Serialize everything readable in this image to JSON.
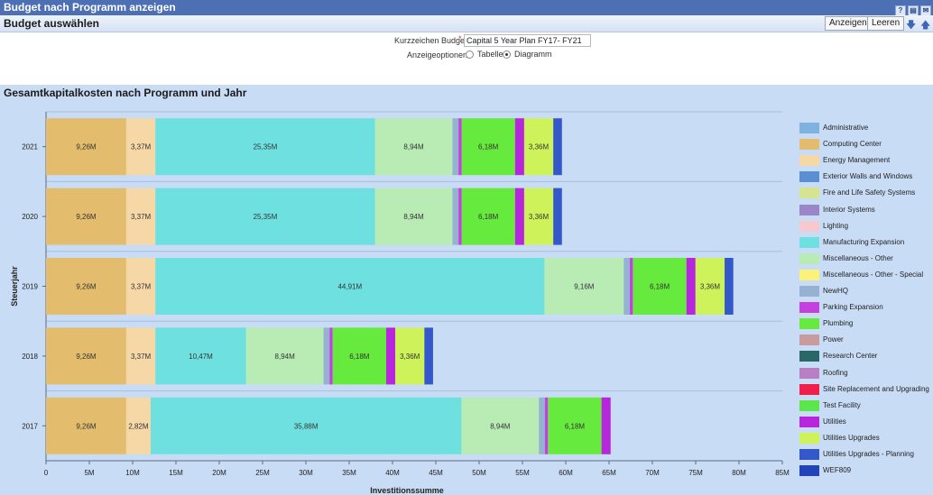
{
  "window": {
    "title": "Budget nach Programm anzeigen"
  },
  "panel": {
    "title": "Budget auswählen",
    "show_button": "Anzeigen",
    "clear_button": "Leeren"
  },
  "form": {
    "short_budget_label": "Kurzzeichen Budget",
    "short_budget_value": "Capital 5 Year Plan FY17- FY21",
    "display_options_label": "Anzeigeoptionen",
    "option_table": "Tabelle",
    "option_chart": "Diagramm",
    "selected_option": "Diagramm"
  },
  "chart_data": {
    "type": "bar",
    "orientation": "horizontal",
    "stacked": true,
    "title": "Gesamtkapitalkosten nach Programm und Jahr",
    "xlabel": "Investitionssumme",
    "ylabel": "Steuerjahr",
    "xlim": [
      0,
      85
    ],
    "x_unit": "M",
    "xticks": [
      "0",
      "5M",
      "10M",
      "15M",
      "20M",
      "25M",
      "30M",
      "35M",
      "40M",
      "45M",
      "50M",
      "55M",
      "60M",
      "65M",
      "70M",
      "75M",
      "80M",
      "85M"
    ],
    "categories": [
      "2021",
      "2020",
      "2019",
      "2018",
      "2017"
    ],
    "legend_position": "right",
    "series": [
      {
        "name": "Administrative",
        "color": "#7fb2e0",
        "values": [
          0,
          0,
          0,
          0,
          0
        ],
        "labels": [
          "",
          "",
          "",
          "",
          ""
        ]
      },
      {
        "name": "Computing Center",
        "color": "#e3bd6d",
        "values": [
          9.26,
          9.26,
          9.26,
          9.26,
          9.26
        ],
        "labels": [
          "9,26M",
          "9,26M",
          "9,26M",
          "9,26M",
          "9,26M"
        ]
      },
      {
        "name": "Energy Management",
        "color": "#f6d7a6",
        "values": [
          3.37,
          3.37,
          3.37,
          3.37,
          2.82
        ],
        "labels": [
          "3,37M",
          "3,37M",
          "3,37M",
          "3,37M",
          "2,82M"
        ]
      },
      {
        "name": "Exterior Walls and Windows",
        "color": "#5a8fd4",
        "values": [
          0,
          0,
          0,
          0,
          0
        ],
        "labels": [
          "",
          "",
          "",
          "",
          ""
        ]
      },
      {
        "name": "Fire and Life Safety Systems",
        "color": "#d4e48f",
        "values": [
          0,
          0,
          0,
          0,
          0
        ],
        "labels": [
          "",
          "",
          "",
          "",
          ""
        ]
      },
      {
        "name": "Interior Systems",
        "color": "#9a86c8",
        "values": [
          0,
          0,
          0,
          0,
          0
        ],
        "labels": [
          "",
          "",
          "",
          "",
          ""
        ]
      },
      {
        "name": "Lighting",
        "color": "#f6c9cf",
        "values": [
          0,
          0,
          0,
          0,
          0
        ],
        "labels": [
          "",
          "",
          "",
          "",
          ""
        ]
      },
      {
        "name": "Manufacturing Expansion",
        "color": "#6fe0e0",
        "values": [
          25.35,
          25.35,
          44.91,
          10.47,
          35.88
        ],
        "labels": [
          "25,35M",
          "25,35M",
          "44,91M",
          "10,47M",
          "35,88M"
        ]
      },
      {
        "name": "Miscellaneous - Other",
        "color": "#b8ecb4",
        "values": [
          8.94,
          8.94,
          9.16,
          8.94,
          8.94
        ],
        "labels": [
          "8,94M",
          "8,94M",
          "9,16M",
          "8,94M",
          "8,94M"
        ]
      },
      {
        "name": "Miscellaneous - Other - Special",
        "color": "#fbf27a",
        "values": [
          0,
          0,
          0,
          0,
          0
        ],
        "labels": [
          "",
          "",
          "",
          "",
          ""
        ]
      },
      {
        "name": "NewHQ",
        "color": "#96b1d2",
        "values": [
          0.7,
          0.7,
          0.7,
          0.7,
          0.7
        ],
        "labels": [
          "",
          "",
          "",
          "",
          ""
        ]
      },
      {
        "name": "Parking Expansion",
        "color": "#c63fe0",
        "values": [
          0.35,
          0.35,
          0.35,
          0.35,
          0.35
        ],
        "labels": [
          "",
          "",
          "",
          "",
          ""
        ]
      },
      {
        "name": "Plumbing",
        "color": "#66ea3e",
        "values": [
          6.18,
          6.18,
          6.18,
          6.18,
          6.18
        ],
        "labels": [
          "6,18M",
          "6,18M",
          "6,18M",
          "6,18M",
          "6,18M"
        ]
      },
      {
        "name": "Power",
        "color": "#c99b9e",
        "values": [
          0,
          0,
          0,
          0,
          0
        ],
        "labels": [
          "",
          "",
          "",
          "",
          ""
        ]
      },
      {
        "name": "Research Center",
        "color": "#2a6767",
        "values": [
          0,
          0,
          0,
          0,
          0
        ],
        "labels": [
          "",
          "",
          "",
          "",
          ""
        ]
      },
      {
        "name": "Roofing",
        "color": "#b880c2",
        "values": [
          0,
          0,
          0,
          0,
          0
        ],
        "labels": [
          "",
          "",
          "",
          "",
          ""
        ]
      },
      {
        "name": "Site Replacement and Upgrading",
        "color": "#ee1f4a",
        "values": [
          0,
          0,
          0,
          0,
          0
        ],
        "labels": [
          "",
          "",
          "",
          "",
          ""
        ]
      },
      {
        "name": "Test Facility",
        "color": "#5be64e",
        "values": [
          0,
          0,
          0,
          0,
          0
        ],
        "labels": [
          "",
          "",
          "",
          "",
          ""
        ]
      },
      {
        "name": "Utilities",
        "color": "#b725dc",
        "values": [
          1.05,
          1.05,
          1.05,
          1.05,
          1.05
        ],
        "labels": [
          "",
          "",
          "",
          "",
          ""
        ]
      },
      {
        "name": "Utilities Upgrades",
        "color": "#cef35a",
        "values": [
          3.36,
          3.36,
          3.36,
          3.36,
          0
        ],
        "labels": [
          "3,36M",
          "3,36M",
          "3,36M",
          "3,36M",
          ""
        ]
      },
      {
        "name": "Utilities Upgrades - Planning",
        "color": "#3457c9",
        "values": [
          1.0,
          1.0,
          1.0,
          1.0,
          0
        ],
        "labels": [
          "",
          "",
          "",
          "",
          ""
        ]
      },
      {
        "name": "WEF809",
        "color": "#2145b8",
        "values": [
          0,
          0,
          0,
          0,
          0
        ],
        "labels": [
          "",
          "",
          "",
          "",
          ""
        ]
      }
    ]
  }
}
